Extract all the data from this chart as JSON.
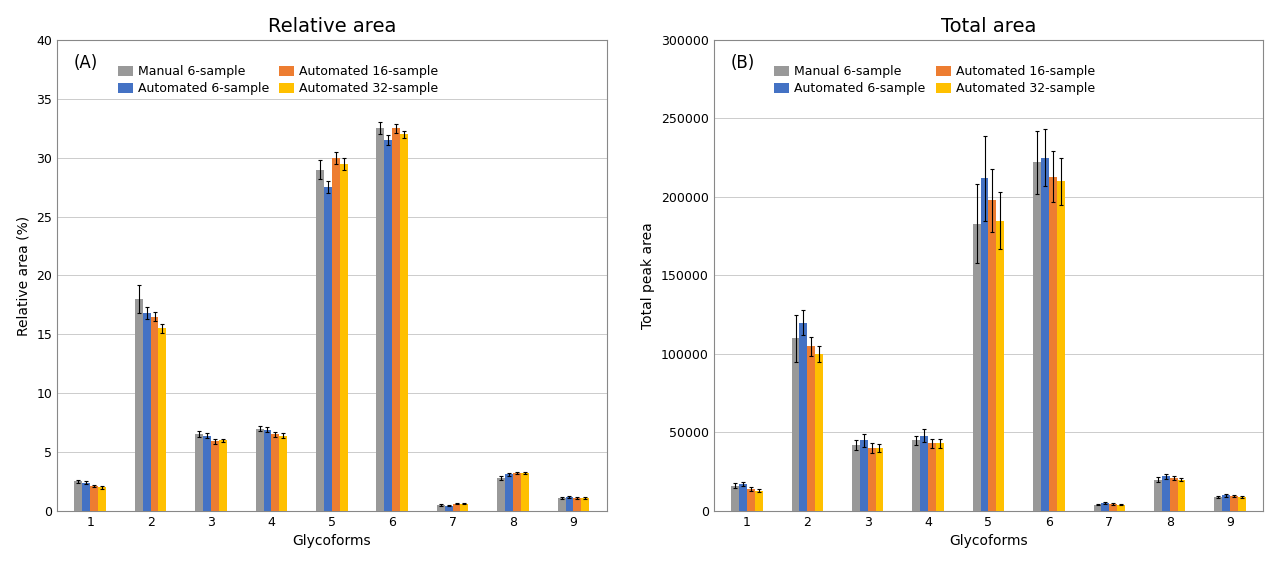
{
  "glycoforms": [
    1,
    2,
    3,
    4,
    5,
    6,
    7,
    8,
    9
  ],
  "series_labels": [
    "Manual 6-sample",
    "Automated 6-sample",
    "Automated 16-sample",
    "Automated 32-sample"
  ],
  "series_colors": [
    "#999999",
    "#4472c4",
    "#ed7d31",
    "#ffc000"
  ],
  "rel_means": [
    [
      2.5,
      18.0,
      6.5,
      7.0,
      29.0,
      32.5,
      0.5,
      2.8,
      1.1
    ],
    [
      2.4,
      16.8,
      6.4,
      6.9,
      27.5,
      31.5,
      0.45,
      3.1,
      1.2
    ],
    [
      2.1,
      16.5,
      5.9,
      6.5,
      30.0,
      32.5,
      0.6,
      3.2,
      1.1
    ],
    [
      2.0,
      15.5,
      6.0,
      6.4,
      29.5,
      32.0,
      0.6,
      3.2,
      1.1
    ]
  ],
  "rel_errs": [
    [
      0.15,
      1.2,
      0.25,
      0.25,
      0.8,
      0.5,
      0.05,
      0.15,
      0.1
    ],
    [
      0.1,
      0.5,
      0.2,
      0.2,
      0.5,
      0.4,
      0.05,
      0.1,
      0.1
    ],
    [
      0.1,
      0.4,
      0.2,
      0.2,
      0.5,
      0.4,
      0.05,
      0.1,
      0.1
    ],
    [
      0.1,
      0.4,
      0.15,
      0.2,
      0.5,
      0.3,
      0.05,
      0.1,
      0.1
    ]
  ],
  "tot_means": [
    [
      16000,
      110000,
      42000,
      45000,
      183000,
      222000,
      4000,
      20000,
      9000
    ],
    [
      17000,
      120000,
      45000,
      48000,
      212000,
      225000,
      5000,
      22000,
      10000
    ],
    [
      14000,
      105000,
      40000,
      43000,
      198000,
      213000,
      4500,
      21000,
      9500
    ],
    [
      13000,
      100000,
      40000,
      43000,
      185000,
      210000,
      4000,
      20000,
      9000
    ]
  ],
  "tot_errs": [
    [
      1500,
      15000,
      3000,
      3000,
      25000,
      20000,
      500,
      1500,
      800
    ],
    [
      1200,
      8000,
      4000,
      4000,
      27000,
      18000,
      600,
      1500,
      900
    ],
    [
      1000,
      6000,
      3000,
      3000,
      20000,
      16000,
      500,
      1200,
      700
    ],
    [
      1000,
      5000,
      2500,
      3000,
      18000,
      15000,
      500,
      1200,
      700
    ]
  ],
  "panel_A_title": "Relative area",
  "panel_B_title": "Total area",
  "xlabel": "Glycoforms",
  "ylabel_A": "Relative area (%)",
  "ylabel_B": "Total peak area",
  "panel_A_label": "(A)",
  "panel_B_label": "(B)",
  "ylim_A": [
    0,
    40
  ],
  "ylim_B": [
    0,
    300000
  ],
  "yticks_A": [
    0,
    5,
    10,
    15,
    20,
    25,
    30,
    35,
    40
  ],
  "yticks_B": [
    0,
    50000,
    100000,
    150000,
    200000,
    250000,
    300000
  ],
  "bg_color": "#ffffff",
  "grid_color": "#cccccc",
  "title_fontsize": 14,
  "label_fontsize": 10,
  "tick_fontsize": 9,
  "legend_fontsize": 9
}
